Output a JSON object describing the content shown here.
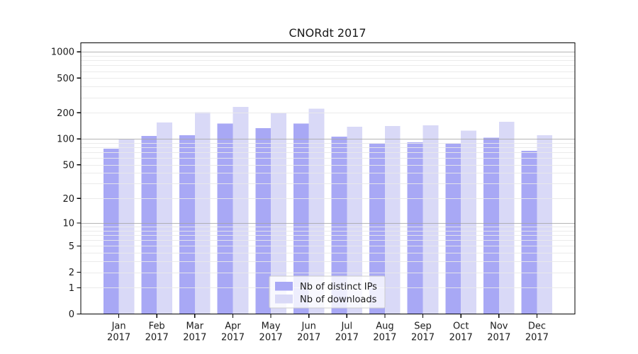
{
  "figure": {
    "background": "#ffffff"
  },
  "chart_data": {
    "type": "bar",
    "title": "CNORdt 2017",
    "categories": [
      "Jan",
      "Feb",
      "Mar",
      "Apr",
      "May",
      "Jun",
      "Jul",
      "Aug",
      "Sep",
      "Oct",
      "Nov",
      "Dec"
    ],
    "x_tick_second_line": "2017",
    "series": [
      {
        "name": "Nb of distinct IPs",
        "color": "#a8a8f5",
        "values": [
          77,
          108,
          110,
          151,
          133,
          151,
          106,
          88,
          91,
          88,
          103,
          73
        ]
      },
      {
        "name": "Nb of downloads",
        "color": "#d9d9f7",
        "values": [
          99,
          155,
          203,
          233,
          199,
          223,
          138,
          141,
          143,
          125,
          158,
          110
        ]
      }
    ],
    "yscale": "log10(value+1)",
    "yticks": [
      1000,
      500,
      200,
      100,
      50,
      20,
      10,
      5,
      2,
      1,
      0
    ],
    "ylim": [
      0,
      1260
    ],
    "grid": true,
    "grid_major_at": [
      10,
      100,
      1000
    ],
    "legend": {
      "position": "inside-bottom-center"
    },
    "colors": {
      "bar_distinct_ips": "#a8a8f5",
      "bar_downloads": "#d9d9f7",
      "major_gridline": "#a3a3a3",
      "minor_gridline": "#e9e9e9",
      "axis": "#000000",
      "text": "#1a1a1a",
      "legend_border": "#cccccc",
      "legend_background": "#ffffff"
    }
  }
}
